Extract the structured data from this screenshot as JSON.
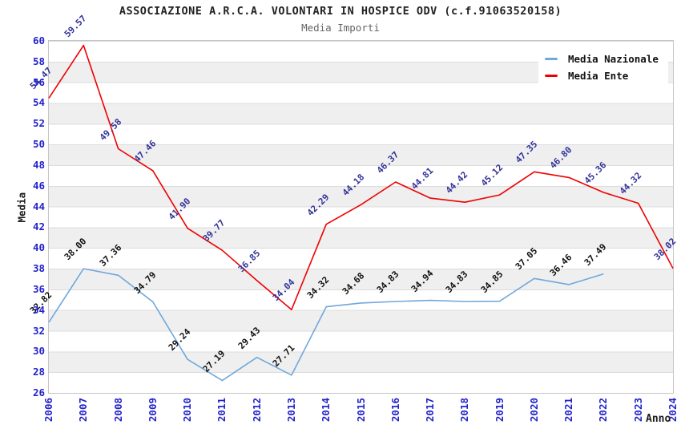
{
  "title": "ASSOCIAZIONE A.R.C.A. VOLONTARI IN HOSPICE ODV (c.f.91063520158)",
  "subtitle": "Media Importi",
  "y_axis_title": "Media",
  "x_axis_title": "Anno",
  "colors": {
    "nazionale_line": "#6fa8dc",
    "ente_line": "#ee0000",
    "nazionale_label": "#111111",
    "ente_label": "#333399",
    "axis_tick_text": "#2222cc",
    "grid_line": "#dcdcdc",
    "band_fill": "#efefef",
    "legend_text": "#111111"
  },
  "legend": {
    "items": [
      {
        "label": "Media Nazionale",
        "color": "#6fa8dc"
      },
      {
        "label": "Media Ente",
        "color": "#ee0000"
      }
    ]
  },
  "chart_data": {
    "type": "line",
    "x": [
      2006,
      2007,
      2008,
      2009,
      2010,
      2011,
      2012,
      2013,
      2014,
      2015,
      2016,
      2017,
      2018,
      2019,
      2020,
      2021,
      2022,
      2023,
      2024
    ],
    "series": [
      {
        "name": "Media Nazionale",
        "color": "#6fa8dc",
        "label_color": "#111111",
        "values": [
          32.82,
          38.0,
          37.36,
          34.79,
          29.24,
          27.19,
          29.43,
          27.71,
          34.32,
          34.68,
          34.83,
          34.94,
          34.83,
          34.85,
          37.05,
          36.46,
          37.49,
          null,
          null
        ]
      },
      {
        "name": "Media Ente",
        "color": "#ee0000",
        "label_color": "#333399",
        "values": [
          54.47,
          59.57,
          49.58,
          47.46,
          41.9,
          39.77,
          36.85,
          34.04,
          42.29,
          44.18,
          46.37,
          44.81,
          44.42,
          45.12,
          47.35,
          46.8,
          45.36,
          44.32,
          38.02
        ]
      }
    ],
    "title": "Media Importi",
    "xlabel": "Anno",
    "ylabel": "Media",
    "ylim": [
      26,
      60
    ],
    "ytick_step": 2,
    "grid": "horizontal-bands",
    "legend_position": "top-right",
    "value_labels": "shown-rotated-45deg"
  }
}
